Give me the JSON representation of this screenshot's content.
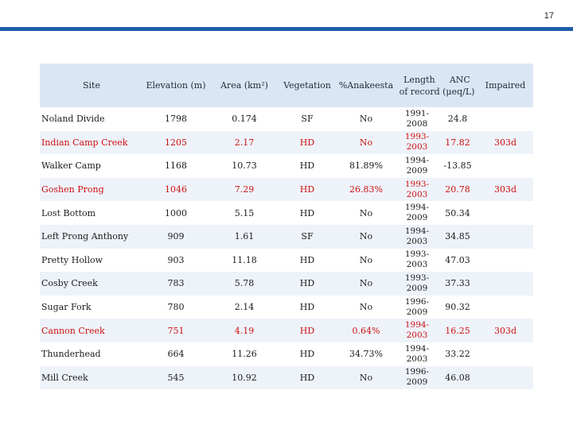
{
  "page_number": "17",
  "table": {
    "headers": {
      "site": "Site",
      "elevation": "Elevation (m)",
      "area": "Area (km²)",
      "vegetation": "Vegetation",
      "anakeesta": "%Anakeesta",
      "length": "Length",
      "anc": "ANC",
      "of_record": "of record (μeq/L)",
      "impaired": "Impaired"
    },
    "rows": [
      {
        "site": "Noland Divide",
        "elevation": "1798",
        "area": "0.174",
        "vegetation": "SF",
        "anakeesta": "No",
        "length_a": "1991-",
        "length_b": "2008",
        "anc": "24.8",
        "impaired": ""
      },
      {
        "site": "Indian Camp Creek",
        "elevation": "1205",
        "area": "2.17",
        "vegetation": "HD",
        "anakeesta": "No",
        "length_a": "1993-",
        "length_b": "2003",
        "anc": "17.82",
        "impaired": "303d"
      },
      {
        "site": "Walker Camp",
        "elevation": "1168",
        "area": "10.73",
        "vegetation": "HD",
        "anakeesta": "81.89%",
        "length_a": "1994-",
        "length_b": "2009",
        "anc": "-13.85",
        "impaired": ""
      },
      {
        "site": "Goshen Prong",
        "elevation": "1046",
        "area": "7.29",
        "vegetation": "HD",
        "anakeesta": "26.83%",
        "length_a": "1993-",
        "length_b": "2003",
        "anc": "20.78",
        "impaired": "303d"
      },
      {
        "site": "Lost Bottom",
        "elevation": "1000",
        "area": "5.15",
        "vegetation": "HD",
        "anakeesta": "No",
        "length_a": "1994-",
        "length_b": "2009",
        "anc": "50.34",
        "impaired": ""
      },
      {
        "site": "Left Prong Anthony",
        "elevation": "909",
        "area": "1.61",
        "vegetation": "SF",
        "anakeesta": "No",
        "length_a": "1994-",
        "length_b": "2003",
        "anc": "34.85",
        "impaired": ""
      },
      {
        "site": "Pretty Hollow",
        "elevation": "903",
        "area": "11.18",
        "vegetation": "HD",
        "anakeesta": "No",
        "length_a": "1993-",
        "length_b": "2003",
        "anc": "47.03",
        "impaired": ""
      },
      {
        "site": "Cosby Creek",
        "elevation": "783",
        "area": "5.78",
        "vegetation": "HD",
        "anakeesta": "No",
        "length_a": "1993-",
        "length_b": "2009",
        "anc": "37.33",
        "impaired": ""
      },
      {
        "site": "Sugar Fork",
        "elevation": "780",
        "area": "2.14",
        "vegetation": "HD",
        "anakeesta": "No",
        "length_a": "1996-",
        "length_b": "2009",
        "anc": "90.32",
        "impaired": ""
      },
      {
        "site": "Cannon Creek",
        "elevation": "751",
        "area": "4.19",
        "vegetation": "HD",
        "anakeesta": "0.64%",
        "length_a": "1994-",
        "length_b": "2003",
        "anc": "16.25",
        "impaired": "303d"
      },
      {
        "site": "Thunderhead",
        "elevation": "664",
        "area": "11.26",
        "vegetation": "HD",
        "anakeesta": "34.73%",
        "length_a": "1994-",
        "length_b": "2003",
        "anc": "33.22",
        "impaired": ""
      },
      {
        "site": "Mill Creek",
        "elevation": "545",
        "area": "10.92",
        "vegetation": "HD",
        "anakeesta": "No",
        "length_a": "1996-",
        "length_b": "2009",
        "anc": "46.08",
        "impaired": ""
      }
    ]
  },
  "colors": {
    "accent_rule": "#1e5fa8",
    "header_fill": "#dbe6f4",
    "alt_row_fill": "#eef3fa",
    "impaired_text": "#cc1111",
    "body_text": "#1b1b1b"
  }
}
